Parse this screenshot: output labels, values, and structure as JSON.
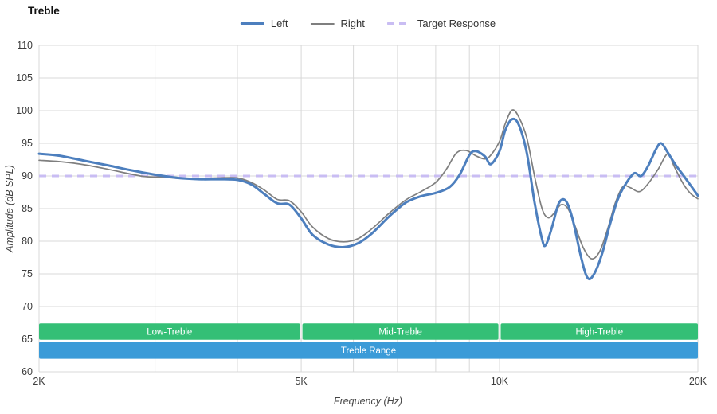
{
  "header": {
    "title": "Treble"
  },
  "legend": {
    "items": [
      {
        "label": "Left",
        "color": "#4d7fbe",
        "dash": false,
        "thickness": 3
      },
      {
        "label": "Right",
        "color": "#7f7f7f",
        "dash": false,
        "thickness": 2
      },
      {
        "label": "Target Response",
        "color": "#c9bdf3",
        "dash": true,
        "thickness": 3
      }
    ]
  },
  "axes": {
    "x_label": "Frequency (Hz)",
    "y_label": "Amplitude (dB SPL)"
  },
  "chart_data": {
    "type": "line",
    "title": "Treble",
    "xlabel": "Frequency (Hz)",
    "ylabel": "Amplitude (dB SPL)",
    "x_scale": "log",
    "xlim": [
      2000,
      20000
    ],
    "ylim": [
      60,
      110
    ],
    "y_tick_step": 5,
    "grid_color": "#d8d8d8",
    "x_gridlines": [
      2000,
      3000,
      4000,
      5000,
      6000,
      7000,
      8000,
      9000,
      10000,
      20000
    ],
    "x_ticks": [
      {
        "value": 2000,
        "label": "2K"
      },
      {
        "value": 5000,
        "label": "5K"
      },
      {
        "value": 10000,
        "label": "10K"
      },
      {
        "value": 20000,
        "label": "20K"
      }
    ],
    "target_response": {
      "label": "Target Response",
      "value": 90,
      "color": "#c9bdf3"
    },
    "bands": [
      {
        "label": "Low-Treble",
        "x0": 2000,
        "x1": 5000,
        "y0": 64.9,
        "y1": 67.4,
        "color": "#34bf76"
      },
      {
        "label": "Mid-Treble",
        "x0": 5000,
        "x1": 10000,
        "y0": 64.9,
        "y1": 67.4,
        "color": "#34bf76"
      },
      {
        "label": "High-Treble",
        "x0": 10000,
        "x1": 20000,
        "y0": 64.9,
        "y1": 67.4,
        "color": "#34bf76"
      },
      {
        "label": "Treble Range",
        "x0": 2000,
        "x1": 20000,
        "y0": 62.0,
        "y1": 64.6,
        "color": "#3b9bd8"
      }
    ],
    "series": [
      {
        "name": "Left",
        "color": "#4d7fbe",
        "width": 3,
        "points": [
          [
            2000,
            93.4
          ],
          [
            2150,
            93.1
          ],
          [
            2350,
            92.3
          ],
          [
            2550,
            91.6
          ],
          [
            2750,
            90.9
          ],
          [
            3000,
            90.2
          ],
          [
            3250,
            89.7
          ],
          [
            3500,
            89.5
          ],
          [
            3750,
            89.5
          ],
          [
            4000,
            89.4
          ],
          [
            4200,
            88.7
          ],
          [
            4400,
            87.2
          ],
          [
            4600,
            85.8
          ],
          [
            4800,
            85.6
          ],
          [
            5000,
            83.5
          ],
          [
            5200,
            81.0
          ],
          [
            5500,
            79.5
          ],
          [
            5800,
            79.1
          ],
          [
            6100,
            79.7
          ],
          [
            6400,
            81.2
          ],
          [
            6800,
            83.8
          ],
          [
            7200,
            85.9
          ],
          [
            7600,
            86.9
          ],
          [
            8000,
            87.4
          ],
          [
            8400,
            88.3
          ],
          [
            8700,
            90.2
          ],
          [
            9000,
            93.2
          ],
          [
            9200,
            93.8
          ],
          [
            9500,
            93.0
          ],
          [
            9700,
            91.8
          ],
          [
            10000,
            93.8
          ],
          [
            10200,
            97.0
          ],
          [
            10450,
            98.7
          ],
          [
            10700,
            97.8
          ],
          [
            11000,
            93.5
          ],
          [
            11300,
            86.0
          ],
          [
            11600,
            80.3
          ],
          [
            11750,
            79.4
          ],
          [
            12000,
            82.0
          ],
          [
            12300,
            85.8
          ],
          [
            12600,
            86.2
          ],
          [
            12900,
            83.5
          ],
          [
            13300,
            77.5
          ],
          [
            13600,
            74.4
          ],
          [
            13900,
            74.9
          ],
          [
            14300,
            78.0
          ],
          [
            14700,
            82.5
          ],
          [
            15100,
            86.3
          ],
          [
            15500,
            88.6
          ],
          [
            16000,
            90.4
          ],
          [
            16400,
            90.0
          ],
          [
            16800,
            91.5
          ],
          [
            17300,
            94.2
          ],
          [
            17600,
            95.0
          ],
          [
            18000,
            93.6
          ],
          [
            18500,
            91.7
          ],
          [
            19200,
            89.5
          ],
          [
            20000,
            87.0
          ]
        ]
      },
      {
        "name": "Right",
        "color": "#7f7f7f",
        "width": 1.7,
        "points": [
          [
            2000,
            92.4
          ],
          [
            2150,
            92.2
          ],
          [
            2350,
            91.7
          ],
          [
            2550,
            91.0
          ],
          [
            2750,
            90.3
          ],
          [
            2900,
            89.9
          ],
          [
            3100,
            89.8
          ],
          [
            3300,
            89.6
          ],
          [
            3500,
            89.6
          ],
          [
            3750,
            89.7
          ],
          [
            4000,
            89.7
          ],
          [
            4200,
            89.0
          ],
          [
            4400,
            87.8
          ],
          [
            4600,
            86.4
          ],
          [
            4800,
            86.2
          ],
          [
            5000,
            84.5
          ],
          [
            5200,
            82.2
          ],
          [
            5500,
            80.4
          ],
          [
            5800,
            79.9
          ],
          [
            6100,
            80.4
          ],
          [
            6400,
            81.9
          ],
          [
            6800,
            84.3
          ],
          [
            7200,
            86.3
          ],
          [
            7600,
            87.6
          ],
          [
            8000,
            89.0
          ],
          [
            8300,
            91.0
          ],
          [
            8600,
            93.5
          ],
          [
            8900,
            93.9
          ],
          [
            9200,
            93.1
          ],
          [
            9500,
            92.6
          ],
          [
            9700,
            93.2
          ],
          [
            10000,
            95.3
          ],
          [
            10200,
            98.0
          ],
          [
            10450,
            100.1
          ],
          [
            10700,
            99.0
          ],
          [
            11000,
            95.8
          ],
          [
            11300,
            90.0
          ],
          [
            11600,
            85.0
          ],
          [
            11850,
            83.6
          ],
          [
            12100,
            84.3
          ],
          [
            12400,
            85.6
          ],
          [
            12700,
            85.0
          ],
          [
            13000,
            82.5
          ],
          [
            13400,
            79.0
          ],
          [
            13800,
            77.3
          ],
          [
            14200,
            78.5
          ],
          [
            14600,
            82.0
          ],
          [
            15000,
            86.0
          ],
          [
            15400,
            88.4
          ],
          [
            15800,
            88.2
          ],
          [
            16300,
            87.6
          ],
          [
            16800,
            88.8
          ],
          [
            17400,
            91.0
          ],
          [
            18000,
            93.4
          ],
          [
            18400,
            91.5
          ],
          [
            19000,
            88.8
          ],
          [
            19500,
            87.3
          ],
          [
            20000,
            86.5
          ]
        ]
      }
    ]
  }
}
